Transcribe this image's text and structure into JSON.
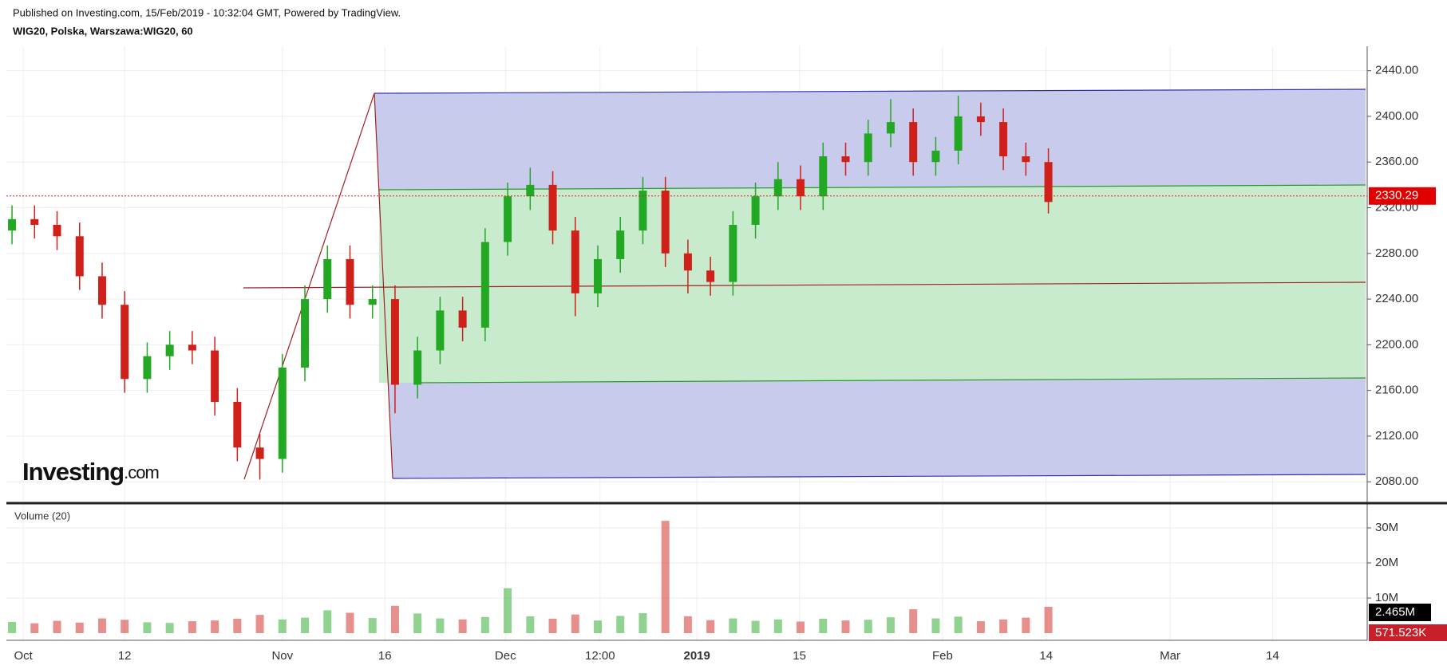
{
  "header": {
    "published": "Published on Investing.com, 15/Feb/2019 - 10:32:04 GMT, Powered by TradingView.",
    "symbol": "WIG20, Polska, Warszawa:WIG20, 60",
    "logo": "Investing",
    "logo_suffix": ".com"
  },
  "chart_data": {
    "type": "candlestick",
    "x": [
      -1,
      1,
      3,
      5,
      7,
      9,
      11,
      13,
      15,
      17,
      19,
      21,
      23,
      25,
      27,
      29,
      31,
      33,
      35,
      37,
      39,
      41,
      43,
      45,
      47,
      49,
      51,
      53,
      55,
      57,
      59,
      61,
      63,
      65,
      67,
      69,
      71,
      73,
      75,
      77,
      79,
      81,
      83,
      85,
      87,
      89,
      91
    ],
    "open": [
      2300,
      2310,
      2305,
      2295,
      2260,
      2235,
      2170,
      2190,
      2200,
      2195,
      2150,
      2110,
      2100,
      2180,
      2240,
      2275,
      2235,
      2240,
      2165,
      2195,
      2230,
      2215,
      2290,
      2330,
      2340,
      2300,
      2245,
      2275,
      2300,
      2335,
      2280,
      2265,
      2255,
      2305,
      2330,
      2345,
      2330,
      2365,
      2360,
      2385,
      2395,
      2360,
      2370,
      2400,
      2395,
      2365,
      2360
    ],
    "high": [
      2322,
      2322,
      2317,
      2307,
      2272,
      2247,
      2202,
      2212,
      2212,
      2207,
      2162,
      2122,
      2192,
      2252,
      2287,
      2287,
      2252,
      2252,
      2207,
      2242,
      2242,
      2302,
      2342,
      2355,
      2352,
      2312,
      2287,
      2312,
      2347,
      2347,
      2292,
      2277,
      2317,
      2342,
      2360,
      2357,
      2377,
      2377,
      2397,
      2415,
      2407,
      2382,
      2418,
      2412,
      2407,
      2377,
      2372
    ],
    "low": [
      2288,
      2293,
      2283,
      2248,
      2223,
      2158,
      2158,
      2178,
      2183,
      2138,
      2098,
      2082,
      2088,
      2168,
      2228,
      2223,
      2223,
      2140,
      2153,
      2183,
      2203,
      2203,
      2278,
      2318,
      2288,
      2225,
      2233,
      2263,
      2288,
      2268,
      2245,
      2243,
      2243,
      2293,
      2318,
      2318,
      2318,
      2348,
      2348,
      2373,
      2348,
      2348,
      2358,
      2383,
      2353,
      2348,
      2315
    ],
    "close": [
      2310,
      2305,
      2295,
      2260,
      2235,
      2170,
      2190,
      2200,
      2195,
      2150,
      2110,
      2100,
      2180,
      2240,
      2275,
      2235,
      2240,
      2165,
      2195,
      2230,
      2215,
      2290,
      2330,
      2340,
      2300,
      2245,
      2275,
      2300,
      2335,
      2280,
      2265,
      2255,
      2305,
      2330,
      2345,
      2330,
      2365,
      2360,
      2385,
      2395,
      2360,
      2370,
      2400,
      2395,
      2365,
      2360,
      2325
    ],
    "volume": [
      3200000,
      2800000,
      3500000,
      3000000,
      4200000,
      3800000,
      3100000,
      2900000,
      3400000,
      3600000,
      4100000,
      5200000,
      3900000,
      4400000,
      6500000,
      5800000,
      4300000,
      7800000,
      5600000,
      4200000,
      3900000,
      4600000,
      12800000,
      4800000,
      4100000,
      5300000,
      3600000,
      4900000,
      5700000,
      32000000,
      4800000,
      3700000,
      4200000,
      3500000,
      3900000,
      3300000,
      4100000,
      3600000,
      3800000,
      4500000,
      6800000,
      4200000,
      4700000,
      3400000,
      3900000,
      4400000,
      7500000
    ],
    "up_color": "#22a822",
    "down_color": "#d0201a",
    "xlim": [
      -1.5,
      119.3
    ],
    "xticks": [
      {
        "value": 0,
        "label": "Oct"
      },
      {
        "value": 9,
        "label": "12"
      },
      {
        "value": 23,
        "label": "Nov"
      },
      {
        "value": 32.1,
        "label": "16"
      },
      {
        "value": 42.8,
        "label": "Dec"
      },
      {
        "value": 51.2,
        "label": "12:00"
      },
      {
        "value": 59.8,
        "label": "2019"
      },
      {
        "value": 68.9,
        "label": "15"
      },
      {
        "value": 81.6,
        "label": "Feb"
      },
      {
        "value": 90.8,
        "label": "14"
      },
      {
        "value": 101.8,
        "label": "Mar"
      },
      {
        "value": 110.9,
        "label": "14"
      }
    ],
    "ylim": [
      2062,
      2460
    ],
    "yticks": [
      {
        "value": 2080,
        "label": "2080.00"
      },
      {
        "value": 2120,
        "label": "2120.00"
      },
      {
        "value": 2160,
        "label": "2160.00"
      },
      {
        "value": 2200,
        "label": "2200.00"
      },
      {
        "value": 2240,
        "label": "2240.00"
      },
      {
        "value": 2280,
        "label": "2280.00"
      },
      {
        "value": 2320,
        "label": "2320.00"
      },
      {
        "value": 2360,
        "label": "2360.00"
      },
      {
        "value": 2400,
        "label": "2400.00"
      },
      {
        "value": 2440,
        "label": "2440.00"
      }
    ],
    "last_price": 2330.29,
    "volume_title": "Volume (20)",
    "vlim": [
      0,
      36000000
    ],
    "vticks": [
      {
        "value": 10000000,
        "label": "10M"
      },
      {
        "value": 20000000,
        "label": "20M"
      },
      {
        "value": 30000000,
        "label": "30M"
      }
    ],
    "volume_ma_label": "2.465M",
    "volume_last_label": "571.523K",
    "grid": true
  }
}
